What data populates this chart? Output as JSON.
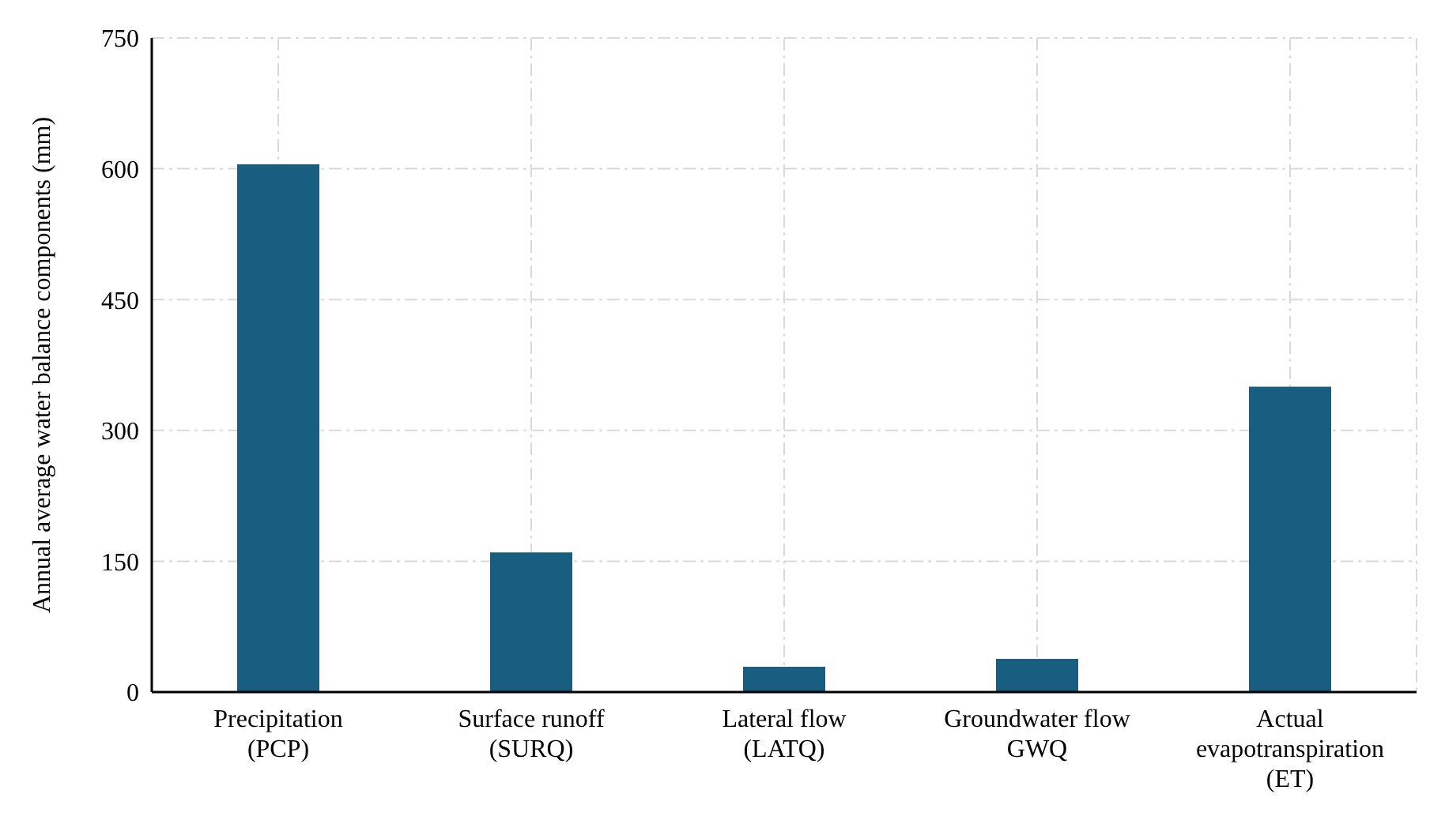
{
  "chart_data": {
    "type": "bar",
    "ylabel": "Annual average water balance components (mm)",
    "categories": [
      "Precipitation\n(PCP)",
      "Surface runoff\n(SURQ)",
      "Lateral flow\n(LATQ)",
      "Groundwater flow\nGWQ",
      "Actual\nevapotranspiration\n(ET)"
    ],
    "values": [
      605,
      160,
      29,
      38,
      350
    ],
    "color": "#175e80",
    "ylim": [
      0,
      750
    ],
    "yticks": [
      0,
      150,
      300,
      450,
      600,
      750
    ],
    "grid": true
  }
}
